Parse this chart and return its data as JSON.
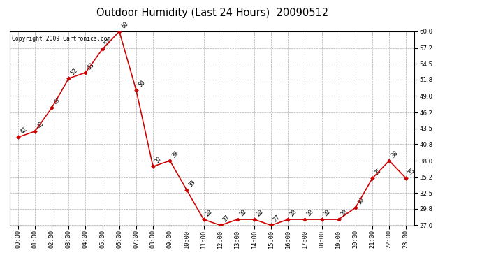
{
  "title": "Outdoor Humidity (Last 24 Hours)  20090512",
  "copyright_text": "Copyright 2009 Cartronics.com",
  "hours": [
    "00:00",
    "01:00",
    "02:00",
    "03:00",
    "04:00",
    "05:00",
    "06:00",
    "07:00",
    "08:00",
    "09:00",
    "10:00",
    "11:00",
    "12:00",
    "13:00",
    "14:00",
    "15:00",
    "16:00",
    "17:00",
    "18:00",
    "19:00",
    "20:00",
    "21:00",
    "22:00",
    "23:00"
  ],
  "values": [
    42,
    43,
    47,
    52,
    53,
    57,
    60,
    50,
    37,
    38,
    33,
    28,
    27,
    28,
    28,
    27,
    28,
    28,
    28,
    28,
    30,
    35,
    38,
    35
  ],
  "line_color": "#cc0000",
  "marker_color": "#cc0000",
  "marker_size": 3,
  "line_width": 1.2,
  "ylim": [
    27.0,
    60.0
  ],
  "yticks": [
    27.0,
    29.8,
    32.5,
    35.2,
    38.0,
    40.8,
    43.5,
    46.2,
    49.0,
    51.8,
    54.5,
    57.2,
    60.0
  ],
  "bg_color": "#ffffff",
  "plot_bg_color": "#ffffff",
  "grid_color": "#aaaaaa",
  "title_fontsize": 11,
  "annotation_fontsize": 6,
  "tick_fontsize": 6.5,
  "copyright_fontsize": 6
}
